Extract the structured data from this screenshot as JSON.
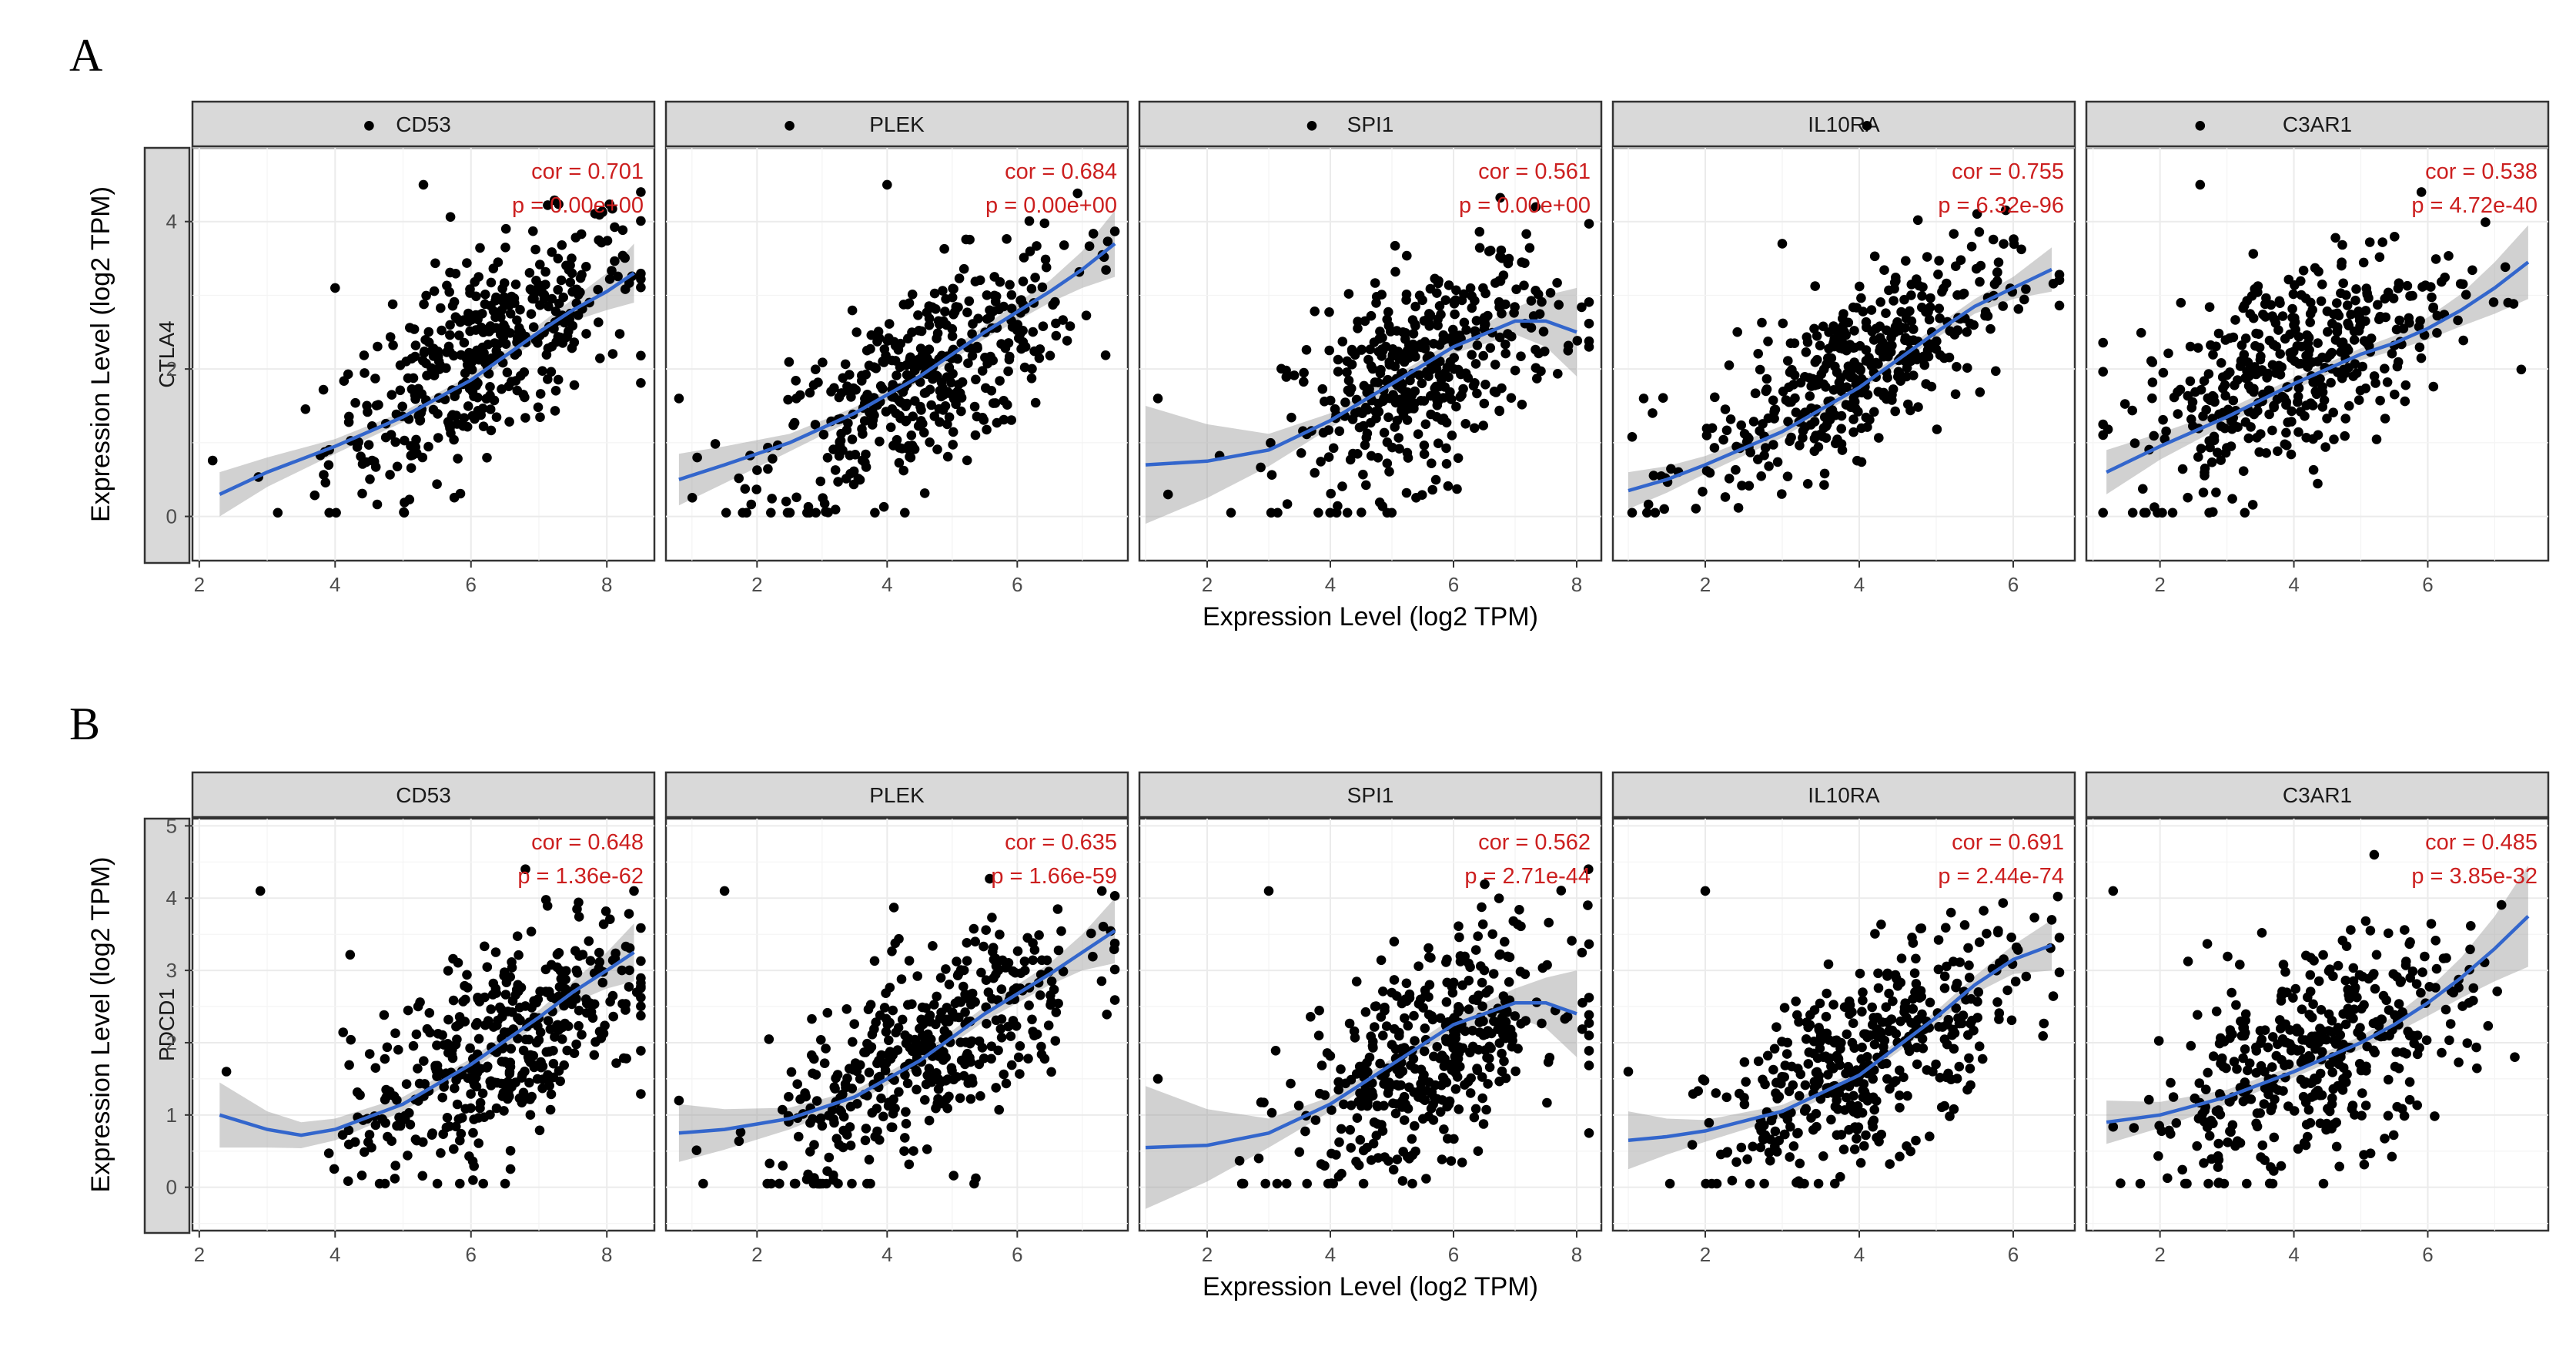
{
  "figure": {
    "x_axis_title": "Expression Level (log2 TPM)",
    "y_axis_title": "Expression Level (log2 TPM)",
    "colors": {
      "points": "#000000",
      "fit_line": "#3366cc",
      "ci_band": "#999999",
      "annotation": "#cc1f1f",
      "strip": "#d9d9d9"
    }
  },
  "chart_data": [
    {
      "type": "scatter",
      "panel_label": "A",
      "row_strip": "CTLA4",
      "ylim": [
        -0.6,
        5.0
      ],
      "y_ticks": [
        0,
        2,
        4
      ],
      "grid": true,
      "facets": [
        {
          "gene": "CD53",
          "xlim": [
            1.9,
            8.7
          ],
          "x_ticks": [
            2,
            4,
            6,
            8
          ],
          "cor_label": "cor = 0.701",
          "p_label": "p = 0.00e+00",
          "n": 420,
          "slope": 0.55,
          "intercept": -1.2,
          "x_mean": 6.2,
          "x_sd": 1.15,
          "noise": 0.65,
          "fit": {
            "x": [
              2.3,
              3.0,
              4.0,
              5.0,
              6.0,
              7.0,
              7.5,
              8.0,
              8.4
            ],
            "y": [
              0.3,
              0.6,
              0.95,
              1.35,
              1.85,
              2.5,
              2.8,
              3.05,
              3.3
            ]
          },
          "band": [
            0.3,
            0.2,
            0.1,
            0.07,
            0.07,
            0.1,
            0.15,
            0.25,
            0.4
          ],
          "outliers": [
            [
              4.5,
              5.3
            ],
            [
              5.3,
              4.5
            ],
            [
              4.0,
              3.1
            ]
          ]
        },
        {
          "gene": "PLEK",
          "xlim": [
            0.6,
            7.7
          ],
          "x_ticks": [
            2,
            4,
            6
          ],
          "cor_label": "cor = 0.684",
          "p_label": "p = 0.00e+00",
          "n": 420,
          "slope": 0.5,
          "intercept": -0.4,
          "x_mean": 4.5,
          "x_sd": 1.2,
          "noise": 0.65,
          "fit": {
            "x": [
              0.8,
              1.5,
              2.5,
              3.5,
              4.5,
              5.5,
              6.5,
              7.0,
              7.5
            ],
            "y": [
              0.5,
              0.7,
              1.0,
              1.4,
              1.9,
              2.5,
              3.05,
              3.35,
              3.7
            ]
          },
          "band": [
            0.35,
            0.25,
            0.12,
            0.08,
            0.07,
            0.09,
            0.15,
            0.25,
            0.45
          ],
          "outliers": [
            [
              2.5,
              5.3
            ],
            [
              4.0,
              4.5
            ],
            [
              0.8,
              1.6
            ]
          ]
        },
        {
          "gene": "SPI1",
          "xlim": [
            0.9,
            8.4
          ],
          "x_ticks": [
            2,
            4,
            6,
            8
          ],
          "cor_label": "cor = 0.561",
          "p_label": "p = 0.00e+00",
          "n": 420,
          "slope": 0.43,
          "intercept": -0.4,
          "x_mean": 5.5,
          "x_sd": 1.1,
          "noise": 0.7,
          "fit": {
            "x": [
              1.0,
              2.0,
              3.0,
              4.0,
              5.0,
              6.0,
              7.0,
              7.5,
              8.0
            ],
            "y": [
              0.7,
              0.75,
              0.9,
              1.3,
              1.8,
              2.3,
              2.65,
              2.65,
              2.5
            ]
          },
          "band": [
            0.8,
            0.5,
            0.22,
            0.1,
            0.08,
            0.09,
            0.18,
            0.35,
            0.6
          ],
          "outliers": [
            [
              3.7,
              5.3
            ],
            [
              1.2,
              1.6
            ],
            [
              8.2,
              2.3
            ]
          ]
        },
        {
          "gene": "IL10RA",
          "xlim": [
            0.8,
            6.8
          ],
          "x_ticks": [
            2,
            4,
            6
          ],
          "cor_label": "cor = 0.755",
          "p_label": "p = 6.32e-96",
          "n": 420,
          "slope": 0.55,
          "intercept": -0.2,
          "x_mean": 3.9,
          "x_sd": 1.0,
          "noise": 0.55,
          "fit": {
            "x": [
              1.0,
              1.5,
              2.0,
              3.0,
              4.0,
              5.0,
              5.5,
              6.0,
              6.5
            ],
            "y": [
              0.35,
              0.5,
              0.7,
              1.15,
              1.75,
              2.5,
              2.85,
              3.1,
              3.35
            ]
          },
          "band": [
            0.25,
            0.18,
            0.12,
            0.08,
            0.06,
            0.08,
            0.1,
            0.15,
            0.3
          ],
          "outliers": [
            [
              4.1,
              5.3
            ],
            [
              3.0,
              3.7
            ],
            [
              1.2,
              1.6
            ]
          ]
        },
        {
          "gene": "C3AR1",
          "xlim": [
            0.9,
            7.8
          ],
          "x_ticks": [
            2,
            4,
            6
          ],
          "cor_label": "cor = 0.538",
          "p_label": "p = 4.72e-40",
          "n": 420,
          "slope": 0.42,
          "intercept": 0.4,
          "x_mean": 4.0,
          "x_sd": 1.2,
          "noise": 0.7,
          "fit": {
            "x": [
              1.2,
              2.0,
              3.0,
              4.0,
              5.0,
              5.5,
              6.0,
              6.5,
              7.0,
              7.5
            ],
            "y": [
              0.6,
              0.95,
              1.35,
              1.8,
              2.2,
              2.35,
              2.55,
              2.8,
              3.1,
              3.45
            ]
          },
          "band": [
            0.3,
            0.18,
            0.1,
            0.08,
            0.08,
            0.1,
            0.15,
            0.22,
            0.35,
            0.5
          ],
          "outliers": [
            [
              2.6,
              5.3
            ],
            [
              2.6,
              4.5
            ],
            [
              7.2,
              2.9
            ]
          ]
        }
      ]
    },
    {
      "type": "scatter",
      "panel_label": "B",
      "row_strip": "PDCD1",
      "ylim": [
        -0.6,
        5.1
      ],
      "y_ticks": [
        0,
        1,
        2,
        3,
        4,
        5
      ],
      "grid": true,
      "facets": [
        {
          "gene": "CD53",
          "xlim": [
            1.9,
            8.7
          ],
          "x_ticks": [
            2,
            4,
            6,
            8
          ],
          "cor_label": "cor = 0.648",
          "p_label": "p = 1.36e-62",
          "n": 420,
          "slope": 0.55,
          "intercept": -1.6,
          "x_mean": 6.4,
          "x_sd": 1.1,
          "noise": 0.7,
          "fit": {
            "x": [
              2.3,
              3.0,
              3.5,
              4.0,
              5.0,
              6.0,
              7.0,
              7.5,
              8.0,
              8.4
            ],
            "y": [
              1.0,
              0.8,
              0.72,
              0.8,
              1.15,
              1.7,
              2.35,
              2.7,
              3.0,
              3.25
            ]
          },
          "band": [
            0.45,
            0.25,
            0.18,
            0.15,
            0.1,
            0.08,
            0.1,
            0.15,
            0.25,
            0.4
          ],
          "outliers": [
            [
              2.9,
              4.1
            ],
            [
              8.4,
              4.1
            ],
            [
              2.4,
              1.6
            ]
          ]
        },
        {
          "gene": "PLEK",
          "xlim": [
            0.6,
            7.7
          ],
          "x_ticks": [
            2,
            4,
            6
          ],
          "cor_label": "cor = 0.635",
          "p_label": "p = 1.66e-59",
          "n": 420,
          "slope": 0.55,
          "intercept": -0.7,
          "x_mean": 4.6,
          "x_sd": 1.2,
          "noise": 0.7,
          "fit": {
            "x": [
              0.8,
              1.5,
              2.5,
              3.5,
              4.5,
              5.5,
              6.5,
              7.0,
              7.5
            ],
            "y": [
              0.75,
              0.8,
              0.95,
              1.25,
              1.75,
              2.4,
              2.95,
              3.25,
              3.55
            ]
          },
          "band": [
            0.4,
            0.28,
            0.15,
            0.09,
            0.08,
            0.1,
            0.15,
            0.25,
            0.45
          ],
          "outliers": [
            [
              1.5,
              4.1
            ],
            [
              7.3,
              4.1
            ],
            [
              0.8,
              1.2
            ]
          ]
        },
        {
          "gene": "SPI1",
          "xlim": [
            0.9,
            8.4
          ],
          "x_ticks": [
            2,
            4,
            6,
            8
          ],
          "cor_label": "cor = 0.562",
          "p_label": "p = 2.71e-44",
          "n": 420,
          "slope": 0.43,
          "intercept": -0.6,
          "x_mean": 5.6,
          "x_sd": 1.1,
          "noise": 0.72,
          "fit": {
            "x": [
              1.0,
              2.0,
              3.0,
              4.0,
              5.0,
              6.0,
              7.0,
              7.5,
              8.0
            ],
            "y": [
              0.55,
              0.58,
              0.75,
              1.15,
              1.7,
              2.25,
              2.55,
              2.55,
              2.4
            ]
          },
          "band": [
            0.85,
            0.5,
            0.2,
            0.1,
            0.08,
            0.1,
            0.2,
            0.35,
            0.6
          ],
          "outliers": [
            [
              3.0,
              4.1
            ],
            [
              1.2,
              1.5
            ],
            [
              8.2,
              2.1
            ]
          ]
        },
        {
          "gene": "IL10RA",
          "xlim": [
            0.8,
            6.8
          ],
          "x_ticks": [
            2,
            4,
            6
          ],
          "cor_label": "cor = 0.691",
          "p_label": "p = 2.44e-74",
          "n": 420,
          "slope": 0.55,
          "intercept": -0.5,
          "x_mean": 4.1,
          "x_sd": 1.0,
          "noise": 0.65,
          "fit": {
            "x": [
              1.0,
              1.5,
              2.0,
              3.0,
              4.0,
              5.0,
              5.5,
              6.0,
              6.5
            ],
            "y": [
              0.65,
              0.7,
              0.78,
              1.05,
              1.55,
              2.35,
              2.8,
              3.15,
              3.35
            ]
          },
          "band": [
            0.4,
            0.25,
            0.15,
            0.09,
            0.07,
            0.09,
            0.12,
            0.2,
            0.35
          ],
          "outliers": [
            [
              2.0,
              4.1
            ],
            [
              1.0,
              1.6
            ],
            [
              6.5,
              3.7
            ]
          ]
        },
        {
          "gene": "C3AR1",
          "xlim": [
            0.9,
            7.8
          ],
          "x_ticks": [
            2,
            4,
            6
          ],
          "cor_label": "cor = 0.485",
          "p_label": "p = 3.85e-32",
          "n": 420,
          "slope": 0.4,
          "intercept": 0.1,
          "x_mean": 4.2,
          "x_sd": 1.2,
          "noise": 0.72,
          "fit": {
            "x": [
              1.2,
              2.0,
              3.0,
              4.0,
              5.0,
              5.5,
              6.0,
              6.5,
              7.0,
              7.5
            ],
            "y": [
              0.9,
              1.0,
              1.25,
              1.6,
              2.0,
              2.25,
              2.55,
              2.9,
              3.3,
              3.75
            ]
          },
          "band": [
            0.3,
            0.18,
            0.1,
            0.08,
            0.09,
            0.12,
            0.18,
            0.28,
            0.45,
            0.7
          ],
          "outliers": [
            [
              1.3,
              4.1
            ],
            [
              7.3,
              1.8
            ],
            [
              5.2,
              4.6
            ]
          ]
        }
      ]
    }
  ]
}
